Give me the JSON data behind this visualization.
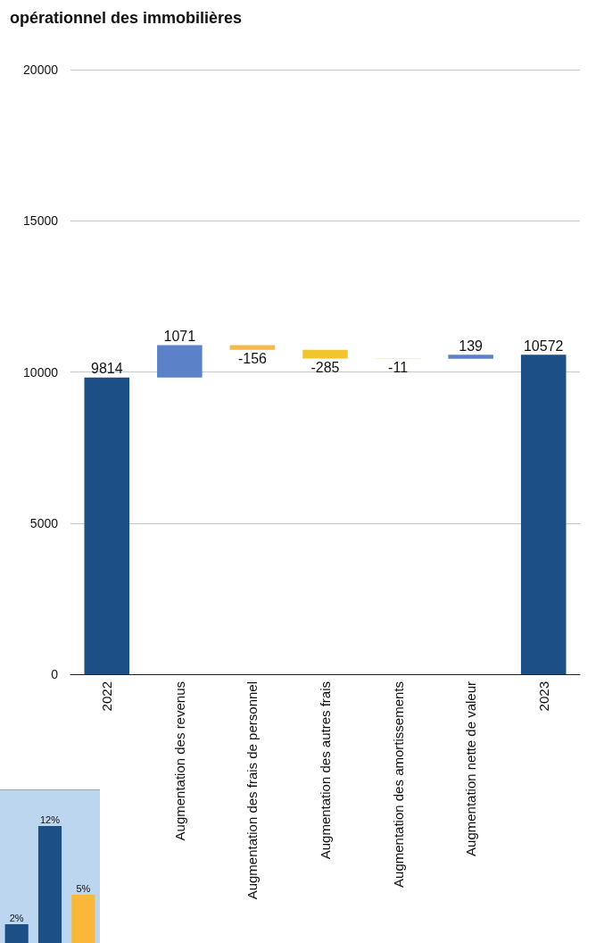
{
  "chart_data": [
    {
      "type": "bar",
      "title": "opérationnel des immobilières",
      "categories": [
        "2022",
        "Augmentation des revenus",
        "Augmentation des frais de personnel",
        "Augmentation des autres frais",
        "Augmentation des amortissements",
        "Augmentation nette de valeur",
        "2023"
      ],
      "base": [
        0,
        9814,
        10885,
        10729,
        10444,
        10433,
        0
      ],
      "values": [
        9814,
        1071,
        -156,
        -285,
        -11,
        139,
        10572
      ],
      "data_labels": true,
      "colors": [
        "#1b4f85",
        "#5b82c8",
        "#f6b94a",
        "#f2c530",
        "#f6b94a",
        "#5b82c8",
        "#1b4f85"
      ],
      "ylim": [
        0,
        20000
      ],
      "yticks": [
        0,
        5000,
        10000,
        15000,
        20000
      ],
      "grid": "y"
    },
    {
      "type": "bar",
      "categories": [
        null,
        null,
        null
      ],
      "values": [
        2,
        12,
        5
      ],
      "value_labels": [
        "2%",
        "12%",
        "5%"
      ],
      "colors": [
        "#1b4f85",
        "#1b4f85",
        "#f9b83a"
      ]
    }
  ]
}
